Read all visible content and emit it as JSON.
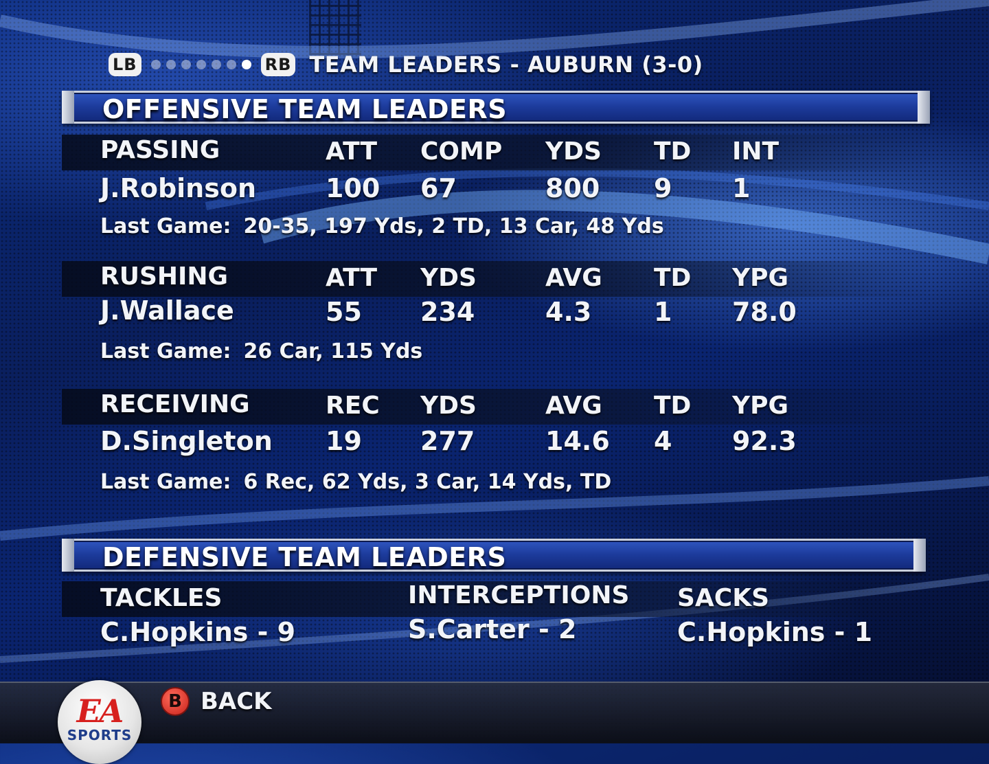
{
  "header": {
    "lb": "LB",
    "rb": "RB",
    "title": "TEAM LEADERS - AUBURN (3-0)",
    "pages": 7,
    "active_page": 7
  },
  "offense": {
    "title": "OFFENSIVE TEAM LEADERS",
    "passing": {
      "headers": [
        "PASSING",
        "ATT",
        "COMP",
        "YDS",
        "TD",
        "INT"
      ],
      "values": [
        "J.Robinson",
        "100",
        "67",
        "800",
        "9",
        "1"
      ],
      "last_game_label": "Last Game:",
      "last_game": "20-35, 197 Yds, 2 TD,  13 Car, 48 Yds"
    },
    "rushing": {
      "headers": [
        "RUSHING",
        "ATT",
        "YDS",
        "AVG",
        "TD",
        "YPG"
      ],
      "values": [
        "J.Wallace",
        "55",
        "234",
        "4.3",
        "1",
        "78.0"
      ],
      "last_game_label": "Last Game:",
      "last_game": "26 Car, 115 Yds"
    },
    "receiving": {
      "headers": [
        "RECEIVING",
        "REC",
        "YDS",
        "AVG",
        "TD",
        "YPG"
      ],
      "values": [
        "D.Singleton",
        "19",
        "277",
        "14.6",
        "4",
        "92.3"
      ],
      "last_game_label": "Last Game:",
      "last_game": "6 Rec, 62 Yds,  3 Car, 14 Yds, TD"
    }
  },
  "defense": {
    "title": "DEFENSIVE TEAM LEADERS",
    "headers": [
      "TACKLES",
      "INTERCEPTIONS",
      "SACKS"
    ],
    "values": [
      "C.Hopkins - 9",
      "S.Carter - 2",
      "C.Hopkins - 1"
    ]
  },
  "footer": {
    "logo_ea": "EA",
    "logo_sports": "SPORTS",
    "back_key": "B",
    "back_label": "BACK"
  }
}
